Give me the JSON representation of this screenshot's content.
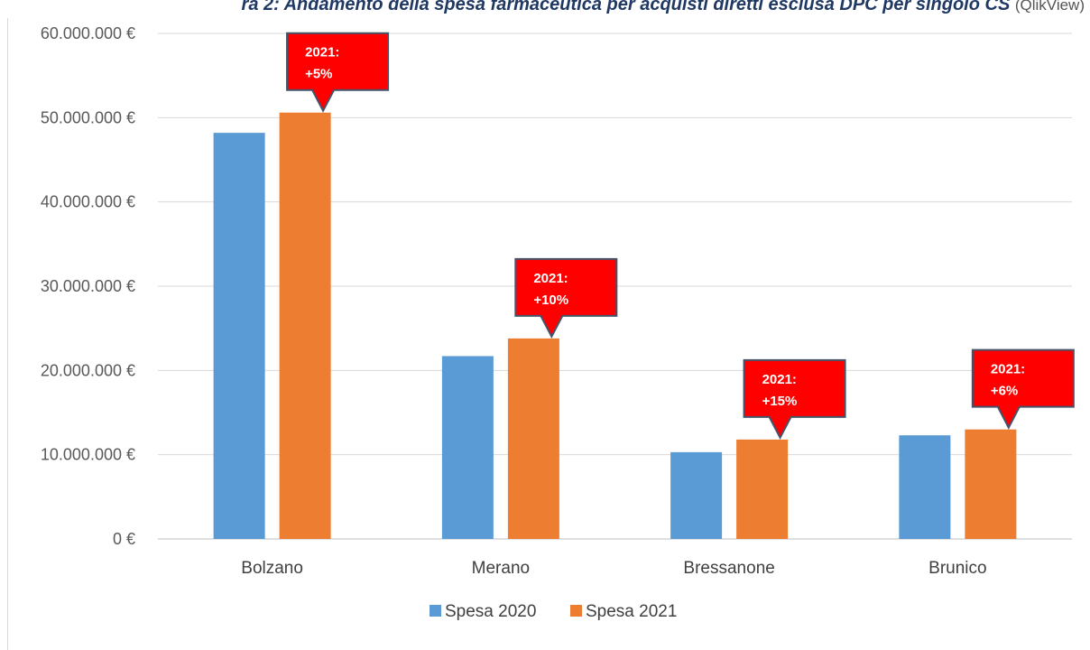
{
  "caption": {
    "main": "ra 2: Andamento della spesa farmaceutica per acquisti diretti esclusa DPC per singolo CS",
    "source": "(QlikView)"
  },
  "chart_data": {
    "type": "bar",
    "categories": [
      "Bolzano",
      "Merano",
      "Bressanone",
      "Brunico"
    ],
    "series": [
      {
        "name": "Spesa 2020",
        "color": "#5b9bd5",
        "values": [
          48200000,
          21700000,
          10300000,
          12300000
        ]
      },
      {
        "name": "Spesa 2021",
        "color": "#ed7d31",
        "values": [
          50600000,
          23800000,
          11800000,
          13000000
        ]
      }
    ],
    "yticks": [
      "0 €",
      "10.000.000 €",
      "20.000.000 €",
      "30.000.000 €",
      "40.000.000 €",
      "50.000.000 €",
      "60.000.000 €"
    ],
    "ylim": [
      0,
      60000000
    ],
    "grid": true,
    "legend_position": "bottom",
    "annotations": [
      {
        "category": "Bolzano",
        "line1": "2021:",
        "line2": "+5%"
      },
      {
        "category": "Merano",
        "line1": "2021:",
        "line2": "+10%"
      },
      {
        "category": "Bressanone",
        "line1": "2021:",
        "line2": "+15%"
      },
      {
        "category": "Brunico",
        "line1": "2021:",
        "line2": "+6%"
      }
    ],
    "annotation_color": "#ff0000",
    "annotation_border": "#44546a"
  }
}
